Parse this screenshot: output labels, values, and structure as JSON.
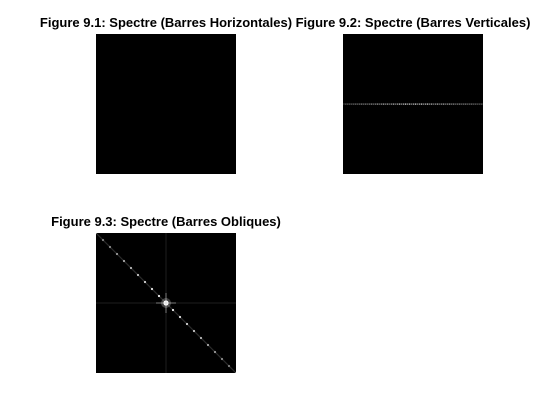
{
  "figures": [
    {
      "title": "Figure 9.1: Spectre (Barres Horizontales)",
      "pattern": "blank"
    },
    {
      "title": "Figure 9.2: Spectre (Barres Verticales)",
      "pattern": "horizontal-line"
    },
    {
      "title": "Figure 9.3: Spectre (Barres Obliques)",
      "pattern": "diagonal"
    }
  ],
  "colors": {
    "background": "#ffffff",
    "image_background": "#000000",
    "spectrum_highlight": "#ffffff"
  }
}
